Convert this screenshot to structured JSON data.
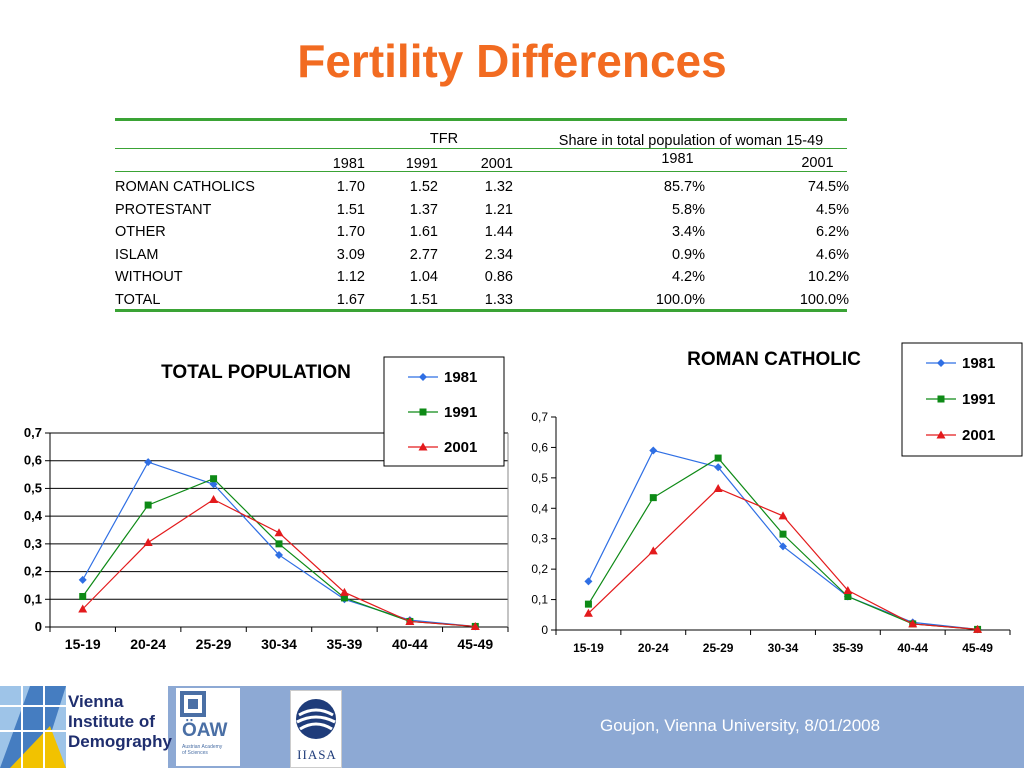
{
  "title": "Fertility Differences",
  "table": {
    "tfr_header": "TFR",
    "share_header": "Share in total population of woman 15-49",
    "years_tfr": [
      "1981",
      "1991",
      "2001"
    ],
    "years_share": [
      "1981",
      "2001"
    ],
    "rows": [
      {
        "label": "ROMAN CATHOLICS",
        "tfr": [
          "1.70",
          "1.52",
          "1.32"
        ],
        "share": [
          "85.7%",
          "74.5%"
        ]
      },
      {
        "label": "PROTESTANT",
        "tfr": [
          "1.51",
          "1.37",
          "1.21"
        ],
        "share": [
          "5.8%",
          "4.5%"
        ]
      },
      {
        "label": "OTHER",
        "tfr": [
          "1.70",
          "1.61",
          "1.44"
        ],
        "share": [
          "3.4%",
          "6.2%"
        ]
      },
      {
        "label": "ISLAM",
        "tfr": [
          "3.09",
          "2.77",
          "2.34"
        ],
        "share": [
          "0.9%",
          "4.6%"
        ]
      },
      {
        "label": "WITHOUT",
        "tfr": [
          "1.12",
          "1.04",
          "0.86"
        ],
        "share": [
          "4.2%",
          "10.2%"
        ]
      },
      {
        "label": "TOTAL",
        "tfr": [
          "1.67",
          "1.51",
          "1.33"
        ],
        "share": [
          "100.0%",
          "100.0%"
        ]
      }
    ]
  },
  "colors": {
    "title": "#f26b21",
    "series_1981": "#2f6fe4",
    "series_1991": "#0e8a16",
    "series_2001": "#e31a1c",
    "table_lines": "#3aa335",
    "footer": "#8da9d4"
  },
  "chart_data": [
    {
      "type": "line",
      "title": "TOTAL POPULATION",
      "categories": [
        "15-19",
        "20-24",
        "25-29",
        "30-34",
        "35-39",
        "40-44",
        "45-49"
      ],
      "y_tick_labels": [
        "0",
        "0,1",
        "0,2",
        "0,3",
        "0,4",
        "0,5",
        "0,6",
        "0,7"
      ],
      "ylim": [
        0,
        0.7
      ],
      "grid": true,
      "legend": "top-right",
      "series": [
        {
          "name": "1981",
          "marker": "diamond",
          "values": [
            0.17,
            0.595,
            0.515,
            0.26,
            0.1,
            0.025,
            0.002
          ]
        },
        {
          "name": "1991",
          "marker": "square",
          "values": [
            0.11,
            0.44,
            0.535,
            0.3,
            0.105,
            0.02,
            0.002
          ]
        },
        {
          "name": "2001",
          "marker": "triangle",
          "values": [
            0.065,
            0.305,
            0.46,
            0.34,
            0.125,
            0.02,
            0.002
          ]
        }
      ]
    },
    {
      "type": "line",
      "title": "ROMAN CATHOLIC",
      "categories": [
        "15-19",
        "20-24",
        "25-29",
        "30-34",
        "35-39",
        "40-44",
        "45-49"
      ],
      "y_tick_labels": [
        "0",
        "0,1",
        "0,2",
        "0,3",
        "0,4",
        "0,5",
        "0,6",
        "0,7"
      ],
      "ylim": [
        0,
        0.7
      ],
      "grid": false,
      "legend": "top-right",
      "series": [
        {
          "name": "1981",
          "marker": "diamond",
          "values": [
            0.16,
            0.59,
            0.535,
            0.275,
            0.11,
            0.025,
            0.002
          ]
        },
        {
          "name": "1991",
          "marker": "square",
          "values": [
            0.085,
            0.435,
            0.565,
            0.315,
            0.11,
            0.02,
            0.002
          ]
        },
        {
          "name": "2001",
          "marker": "triangle",
          "values": [
            0.055,
            0.26,
            0.465,
            0.375,
            0.13,
            0.02,
            0.002
          ]
        }
      ]
    }
  ],
  "footer": {
    "text": "Goujon,  Vienna University, 8/01/2008",
    "vid_line1": "Vienna",
    "vid_line2": "Institute of",
    "vid_line3": "Demography",
    "oaw": "ÖAW",
    "oaw_sub1": "Austrian Academy",
    "oaw_sub2": "of Sciences",
    "iiasa": "IIASA"
  }
}
